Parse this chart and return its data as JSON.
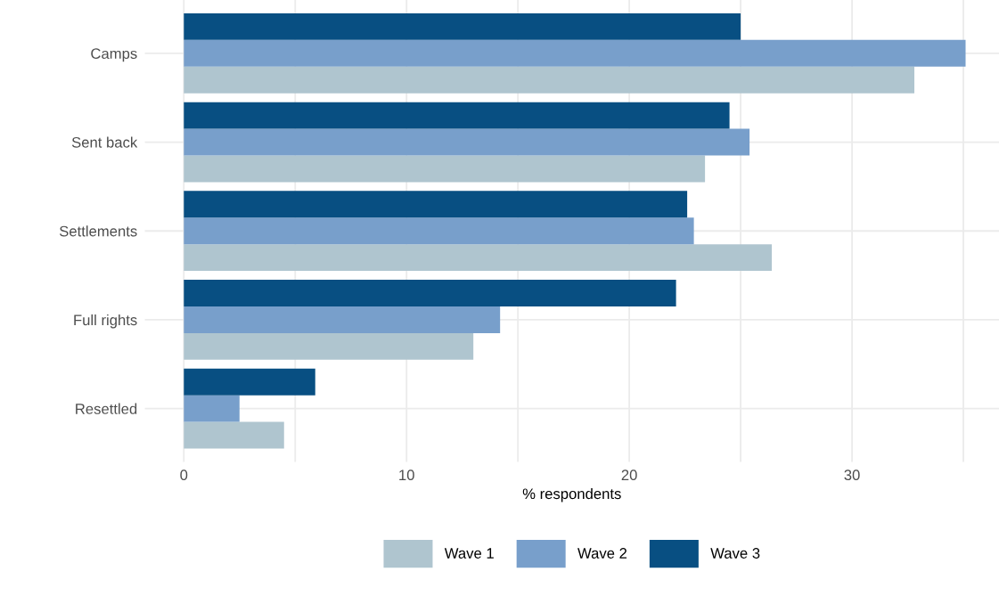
{
  "chart_data": {
    "type": "bar",
    "orientation": "horizontal",
    "xlabel": "% respondents",
    "categories": [
      "Camps",
      "Sent back",
      "Settlements",
      "Full rights",
      "Resettled"
    ],
    "series": [
      {
        "name": "Wave 1",
        "color": "#afc5cf",
        "values": [
          32.8,
          23.4,
          26.4,
          13.0,
          4.5
        ]
      },
      {
        "name": "Wave 2",
        "color": "#789fcb",
        "values": [
          35.1,
          25.4,
          22.9,
          14.2,
          2.5
        ]
      },
      {
        "name": "Wave 3",
        "color": "#084f82",
        "values": [
          25.0,
          24.5,
          22.6,
          22.1,
          5.9
        ]
      }
    ],
    "xlim": [
      -1.75,
      36.6
    ],
    "xticks": [
      0,
      {
        "value": 5,
        "label": null
      },
      10,
      {
        "value": 15,
        "label": null
      },
      20,
      {
        "value": 25,
        "label": null
      },
      30,
      {
        "value": 35,
        "label": null
      }
    ],
    "grid": true,
    "legend": "bottom"
  }
}
